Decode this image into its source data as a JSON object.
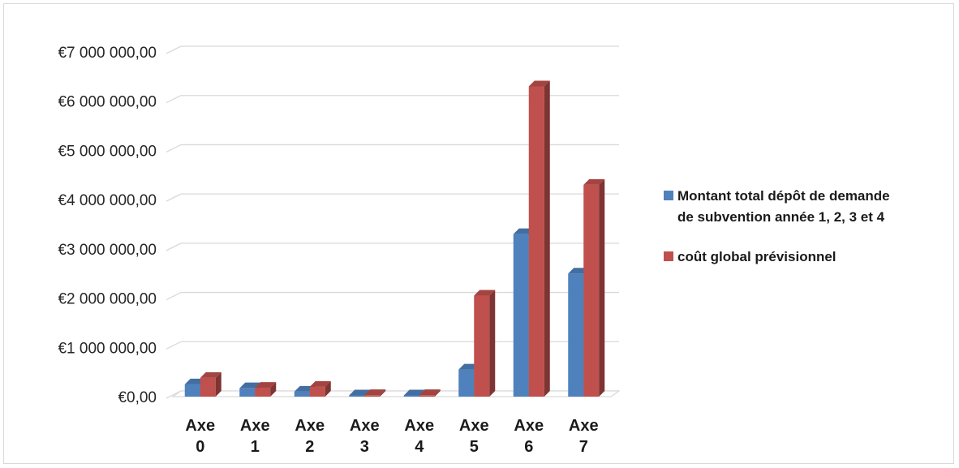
{
  "chart_data": {
    "type": "bar",
    "style": "3d-clustered-column",
    "categories": [
      [
        "Axe",
        "0"
      ],
      [
        "Axe",
        "1"
      ],
      [
        "Axe",
        "2"
      ],
      [
        "Axe",
        "3"
      ],
      [
        "Axe",
        "4"
      ],
      [
        "Axe",
        "5"
      ],
      [
        "Axe",
        "6"
      ],
      [
        "Axe",
        "7"
      ]
    ],
    "series": [
      {
        "name": [
          "Montant total dépôt de demande",
          "de subvention année 1, 2, 3 et 4"
        ],
        "color": "#4f81bd",
        "values": [
          250000,
          170000,
          100000,
          10000,
          20000,
          550000,
          3300000,
          2500000
        ]
      },
      {
        "name": [
          "coût global prévisionnel"
        ],
        "color": "#c0504d",
        "values": [
          380000,
          180000,
          200000,
          30000,
          30000,
          2050000,
          6300000,
          4300000
        ]
      }
    ],
    "ylim": [
      0,
      7000000
    ],
    "yticks": [
      0,
      1000000,
      2000000,
      3000000,
      4000000,
      5000000,
      6000000,
      7000000
    ],
    "ytick_labels": [
      "€0,00",
      "€1 000 000,00",
      "€2 000 000,00",
      "€3 000 000,00",
      "€4 000 000,00",
      "€5 000 000,00",
      "€6 000 000,00",
      "€7 000 000,00"
    ],
    "title": "",
    "xlabel": "",
    "ylabel": "",
    "grid": true,
    "legend": "right"
  }
}
